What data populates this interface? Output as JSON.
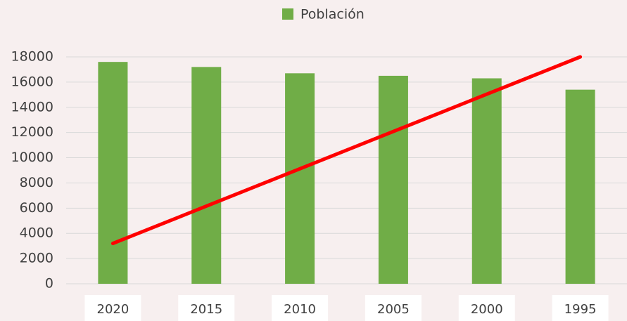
{
  "chart_data": {
    "type": "bar",
    "categories": [
      "2020",
      "2015",
      "2010",
      "2005",
      "2000",
      "1995"
    ],
    "series": [
      {
        "name": "Población",
        "color": "#70ad47",
        "values": [
          17600,
          17200,
          16700,
          16500,
          16300,
          15400
        ]
      },
      {
        "type": "line",
        "color": "#ff0000",
        "values": [
          3200,
          6160,
          9120,
          12080,
          15040,
          18000
        ]
      }
    ],
    "ylim": [
      0,
      18000
    ],
    "yticks": [
      0,
      2000,
      4000,
      6000,
      8000,
      10000,
      12000,
      14000,
      16000,
      18000
    ],
    "grid": true
  }
}
